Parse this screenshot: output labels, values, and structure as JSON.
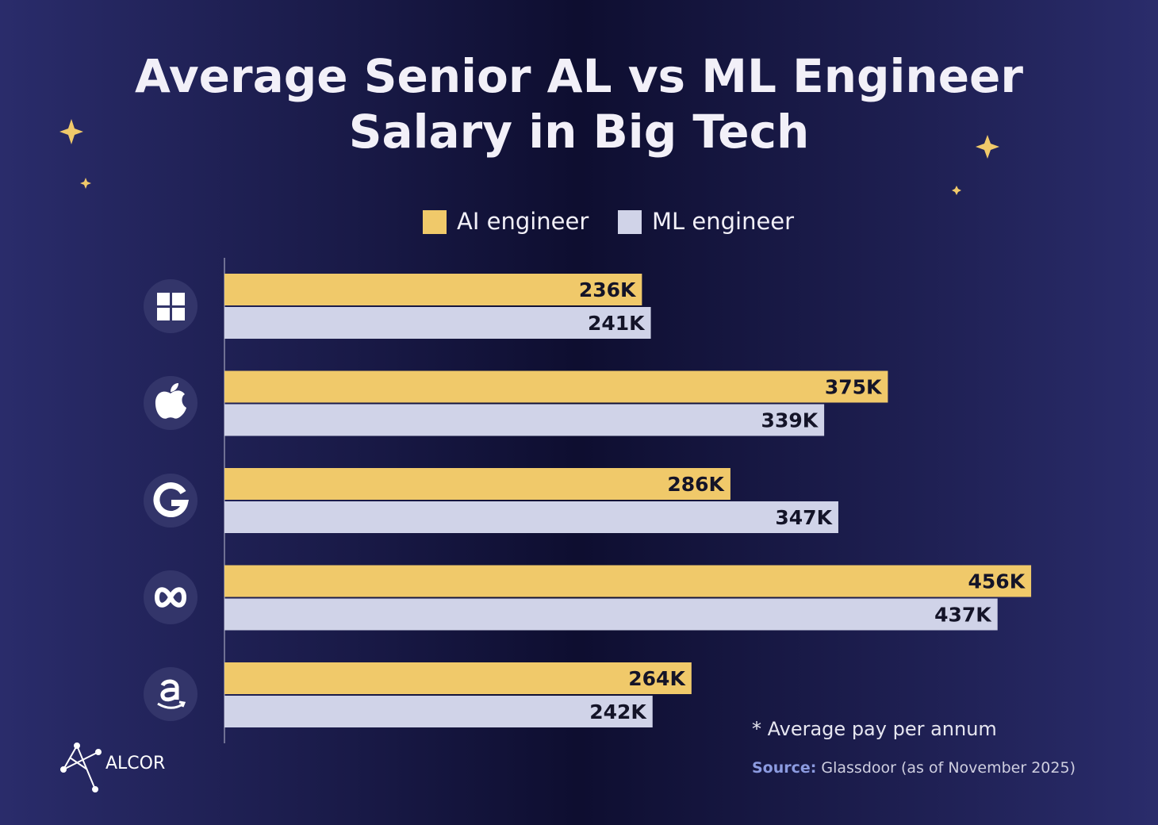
{
  "chart_data": {
    "type": "bar",
    "orientation": "horizontal",
    "title": [
      "Average Senior AL vs ML Engineer",
      "Salary in Big Tech"
    ],
    "categories": [
      null,
      null,
      null,
      null,
      null
    ],
    "series": [
      {
        "name": "AI engineer",
        "color": "#f0c96a",
        "values": [
          236,
          375,
          286,
          456,
          264
        ],
        "value_labels": [
          "236K",
          "375K",
          "286K",
          "456K",
          "264K"
        ]
      },
      {
        "name": "ML engineer",
        "color": "#d0d3e8",
        "values": [
          241,
          339,
          347,
          437,
          242
        ],
        "value_labels": [
          "241K",
          "339K",
          "347K",
          "437K",
          "242K"
        ]
      }
    ],
    "xlim": [
      0,
      460
    ],
    "legend": "top",
    "footnote": "* Average pay per annum",
    "source_label": "Source:",
    "source": "Glassdoor (as of November 2025)",
    "brand": "ALCOR"
  }
}
